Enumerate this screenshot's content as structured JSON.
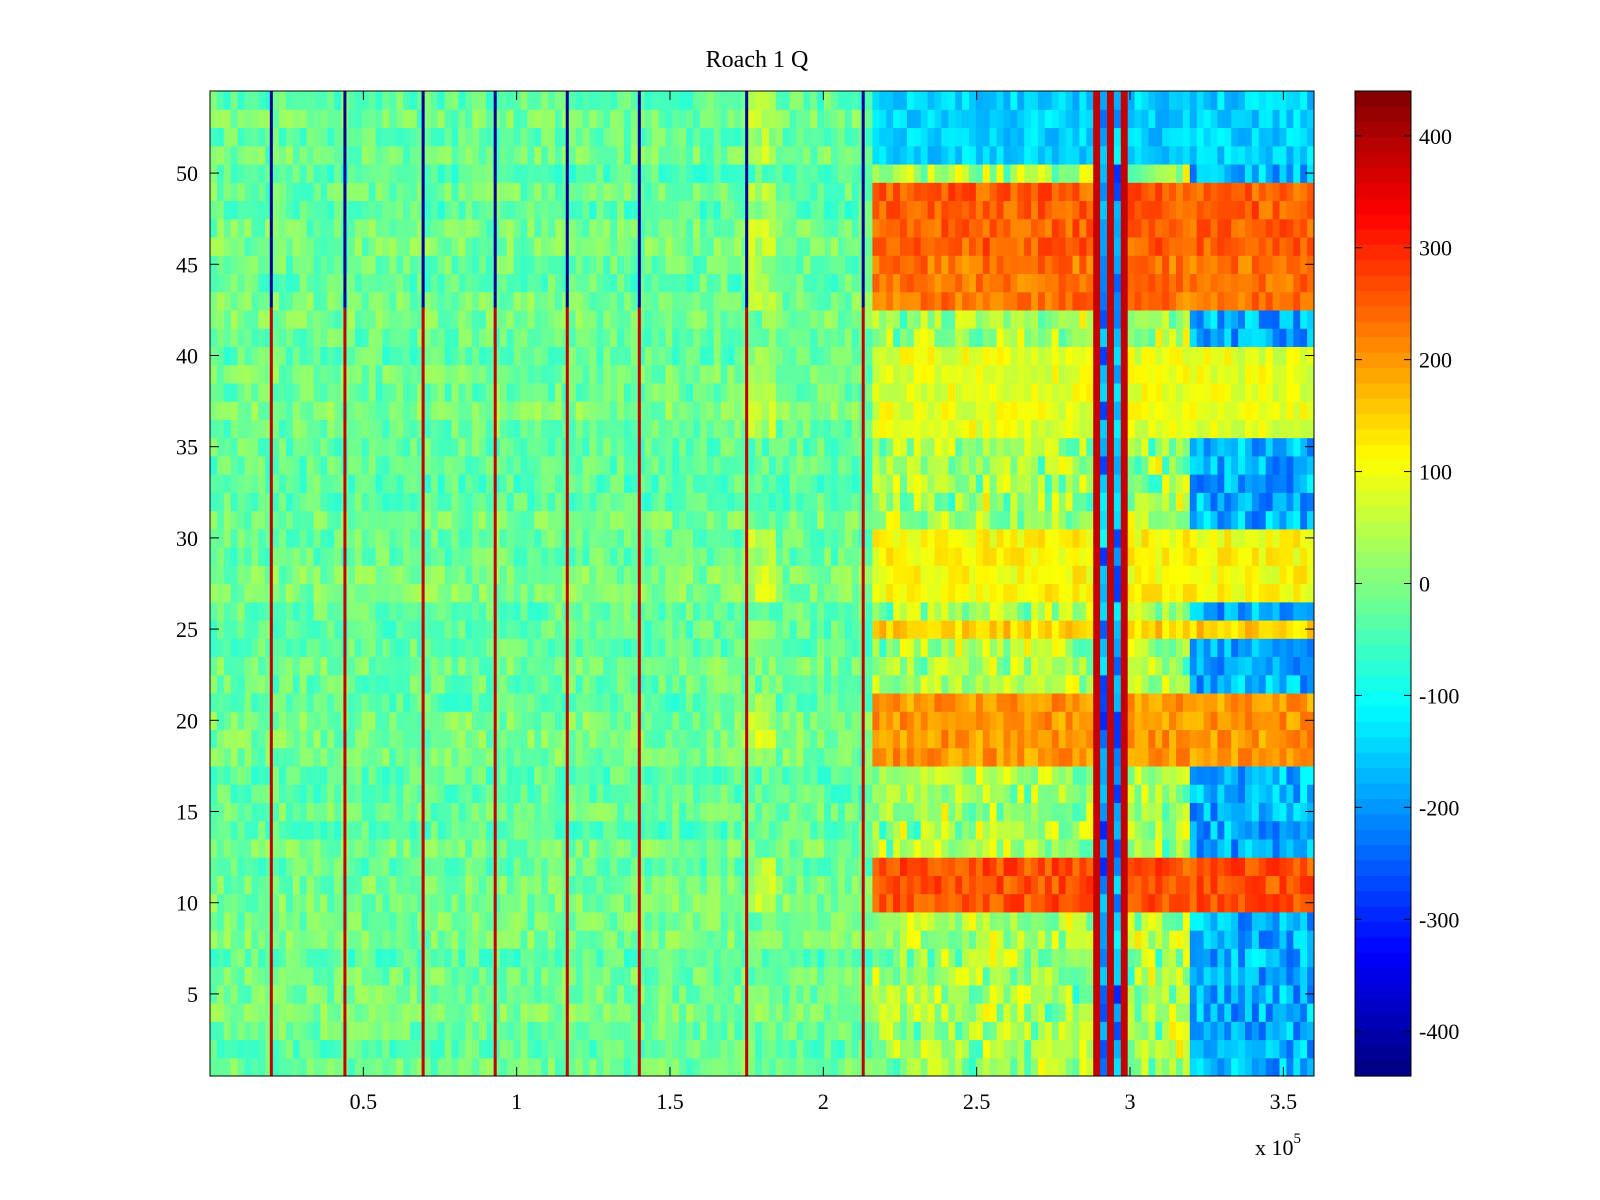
{
  "chart_data": {
    "type": "heatmap",
    "title": "Roach 1 Q",
    "xlabel": "",
    "ylabel": "",
    "x_range": [
      0,
      360000
    ],
    "y_range": [
      0.5,
      54.5
    ],
    "x_ticks": [
      50000,
      100000,
      150000,
      200000,
      250000,
      300000,
      350000
    ],
    "x_tick_labels": [
      "0.5",
      "1",
      "1.5",
      "2",
      "2.5",
      "3",
      "3.5"
    ],
    "x_multiplier_label": {
      "base": "x 10",
      "exponent": "5"
    },
    "y_ticks": [
      5,
      10,
      15,
      20,
      25,
      30,
      35,
      40,
      45,
      50
    ],
    "y_tick_labels": [
      "5",
      "10",
      "15",
      "20",
      "25",
      "30",
      "35",
      "40",
      "45",
      "50"
    ],
    "colorbar": {
      "range": [
        -440,
        440
      ],
      "ticks": [
        -400,
        -300,
        -200,
        -100,
        0,
        100,
        200,
        300,
        400
      ],
      "tick_labels": [
        "-400",
        "-300",
        "-200",
        "-100",
        "0",
        "100",
        "200",
        "300",
        "400"
      ],
      "colormap": "jet"
    },
    "rows": 54,
    "approximate_features": {
      "background_level": -20,
      "vertical_spike_lines_x": [
        20000,
        44000,
        69500,
        93000,
        116500,
        140000,
        175000,
        213000
      ],
      "hot_row_bands": [
        {
          "rows": [
            46,
            49
          ],
          "x_from": 215000,
          "level": 250
        },
        {
          "rows": [
            43,
            45
          ],
          "x_from": 215000,
          "level": 230
        },
        {
          "rows": [
            18,
            21
          ],
          "x_from": 215000,
          "level": 200
        },
        {
          "rows": [
            10,
            12
          ],
          "x_from": 215000,
          "level": 260
        },
        {
          "rows": [
            25,
            25
          ],
          "x_from": 215000,
          "level": 150
        },
        {
          "rows": [
            27,
            30
          ],
          "x_from": 215000,
          "level": 110
        },
        {
          "rows": [
            36,
            40
          ],
          "x_from": 215000,
          "level": 90
        }
      ],
      "cold_row_bands": [
        {
          "rows": [
            51,
            54
          ],
          "x_from": 215000,
          "level": -150
        }
      ],
      "strong_stripe_region_x": [
        288000,
        300000
      ],
      "blue_region_x": [
        320000,
        360000
      ]
    }
  }
}
